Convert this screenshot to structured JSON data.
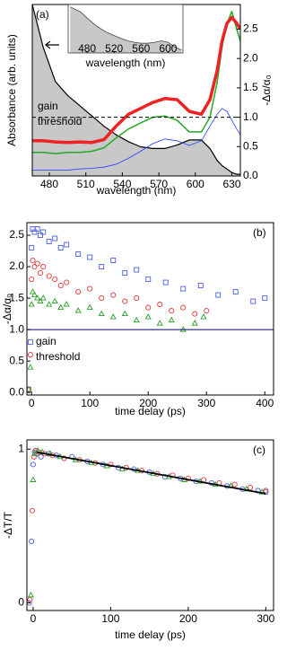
{
  "chart_data": [
    {
      "type": "line",
      "label": "(a)",
      "xlabel": "wavelength (nm)",
      "ylabel": "Absorbance (arb. units)",
      "y2label": "-Δα/α₀",
      "x": [
        466,
        475,
        485,
        495,
        505,
        515,
        525,
        535,
        545,
        555,
        565,
        575,
        585,
        595,
        605,
        612,
        618,
        622,
        626,
        630,
        634,
        637
      ],
      "xlim": [
        466,
        637
      ],
      "xticks": [
        480,
        510,
        540,
        570,
        600,
        630
      ],
      "ylim": [
        0,
        1
      ],
      "y2lim": [
        0,
        2.92
      ],
      "y2ticks": [
        {
          "value": 0,
          "label": "0.0"
        },
        {
          "value": 0.5,
          "label": "0.5"
        },
        {
          "value": 1,
          "label": "1.0"
        },
        {
          "value": 1.5,
          "label": "1.5"
        },
        {
          "value": 2,
          "label": "2.0"
        },
        {
          "value": 2.5,
          "label": "2.5"
        }
      ],
      "threshold": {
        "value": 1,
        "axis": "y2",
        "dashed": true,
        "color": "#000000"
      },
      "annotations": [
        "gain",
        "threshold"
      ],
      "series": [
        {
          "axis": "y",
          "color": "#000000",
          "fill": "#c8c8c8",
          "width": 1.2,
          "values": [
            1.0,
            0.75,
            0.55,
            0.47,
            0.41,
            0.35,
            0.29,
            0.24,
            0.2,
            0.17,
            0.16,
            0.16,
            0.18,
            0.21,
            0.21,
            0.16,
            0.09,
            0.06,
            0.04,
            0.02,
            0.01,
            0.01
          ]
        },
        {
          "axis": "y2",
          "color": "#1f3fff",
          "width": 0.8,
          "values": [
            0.1,
            0.1,
            0.1,
            0.1,
            0.12,
            0.13,
            0.15,
            0.2,
            0.3,
            0.42,
            0.55,
            0.63,
            0.6,
            0.52,
            0.6,
            0.85,
            1.05,
            1.15,
            1.1,
            0.95,
            0.8,
            0.7
          ]
        },
        {
          "axis": "y2",
          "color": "#22aa22",
          "width": 1.5,
          "values": [
            0.4,
            0.4,
            0.38,
            0.4,
            0.4,
            0.42,
            0.48,
            0.65,
            0.8,
            0.9,
            1.0,
            1.02,
            0.95,
            0.75,
            0.75,
            1.0,
            1.6,
            2.2,
            2.6,
            2.8,
            2.5,
            2.3
          ]
        },
        {
          "axis": "y2",
          "color": "#ee2222",
          "width": 3.5,
          "values": [
            0.6,
            0.6,
            0.58,
            0.57,
            0.58,
            0.57,
            0.62,
            0.85,
            1.05,
            1.15,
            1.25,
            1.32,
            1.3,
            1.1,
            1.05,
            1.3,
            1.8,
            2.3,
            2.6,
            2.7,
            2.6,
            2.5
          ]
        }
      ]
    },
    {
      "type": "line",
      "xlabel": "wavelength (nm)",
      "x": [
        455,
        470,
        480,
        490,
        500,
        510,
        520,
        530,
        540,
        550,
        560,
        570,
        580,
        590,
        600,
        610,
        620
      ],
      "xlim": [
        452,
        622
      ],
      "xticks": [
        480,
        520,
        560,
        600
      ],
      "ylim": [
        0,
        1
      ],
      "series": [
        {
          "axis": "y",
          "color": "#444444",
          "fill": "#c8c8c8",
          "width": 0.8,
          "values": [
            0.95,
            0.85,
            0.72,
            0.6,
            0.5,
            0.42,
            0.36,
            0.3,
            0.25,
            0.22,
            0.2,
            0.2,
            0.22,
            0.25,
            0.22,
            0.12,
            0.06
          ]
        }
      ]
    },
    {
      "type": "scatter",
      "label": "(b)",
      "xlabel": "time delay (ps)",
      "ylabel": "-Δα/α₀",
      "xlim": [
        -8,
        415
      ],
      "xticks": [
        0,
        100,
        200,
        300,
        400
      ],
      "ylim": [
        -0.04,
        2.7
      ],
      "yticks": [
        {
          "value": 0,
          "label": "0.0"
        },
        {
          "value": 0.5,
          "label": "0.5"
        },
        {
          "value": 1,
          "label": "1.0"
        },
        {
          "value": 1.5,
          "label": "1.5"
        },
        {
          "value": 2,
          "label": "2.0"
        },
        {
          "value": 2.5,
          "label": "2.5"
        }
      ],
      "threshold": {
        "value": 1,
        "axis": "y",
        "dashed": false,
        "color": "#000066"
      },
      "annotations": [
        "gain",
        "threshold"
      ],
      "series": [
        {
          "color": "#4a5ee8",
          "marker": "square",
          "x": [
            -5,
            -2,
            0,
            2,
            5,
            10,
            15,
            20,
            30,
            40,
            50,
            60,
            80,
            100,
            120,
            140,
            160,
            180,
            200,
            230,
            260,
            290,
            320,
            350,
            380,
            400
          ],
          "values": [
            0.05,
            0.8,
            2.3,
            2.6,
            2.55,
            2.6,
            2.5,
            2.55,
            2.4,
            2.45,
            2.3,
            2.35,
            2.2,
            2.15,
            2.0,
            2.1,
            1.9,
            1.95,
            1.8,
            1.75,
            1.65,
            1.7,
            1.55,
            1.6,
            1.45,
            1.5
          ]
        },
        {
          "color": "#e23a3a",
          "marker": "circle",
          "x": [
            -5,
            -2,
            0,
            2,
            5,
            10,
            15,
            20,
            30,
            40,
            50,
            60,
            80,
            100,
            120,
            140,
            160,
            180,
            200,
            220,
            240,
            260,
            280,
            300
          ],
          "values": [
            0.05,
            0.6,
            1.8,
            2.1,
            2.0,
            2.05,
            1.9,
            2.0,
            1.85,
            1.8,
            1.7,
            1.75,
            1.6,
            1.65,
            1.5,
            1.55,
            1.45,
            1.5,
            1.35,
            1.4,
            1.3,
            1.35,
            1.25,
            1.3
          ]
        },
        {
          "color": "#2aa02a",
          "marker": "triangle",
          "x": [
            -5,
            -2,
            0,
            2,
            5,
            10,
            15,
            20,
            30,
            40,
            50,
            60,
            80,
            100,
            120,
            140,
            160,
            180,
            200,
            220,
            240,
            260,
            280,
            295
          ],
          "values": [
            0.05,
            0.4,
            1.4,
            1.6,
            1.55,
            1.5,
            1.45,
            1.5,
            1.4,
            1.45,
            1.35,
            1.4,
            1.3,
            1.35,
            1.25,
            1.2,
            1.25,
            1.15,
            1.2,
            1.1,
            1.15,
            1.0,
            1.1,
            1.2
          ]
        }
      ]
    },
    {
      "type": "scatter",
      "label": "(c)",
      "xlabel": "time delay (ps)",
      "ylabel": "-ΔT/T",
      "xlim": [
        -8,
        310
      ],
      "xticks": [
        0,
        100,
        200,
        300
      ],
      "ylim": [
        -0.05,
        1.06
      ],
      "yticks": [
        0,
        1
      ],
      "series": [
        {
          "color": "#4a5ee8",
          "marker": "circle",
          "x": [
            -5,
            -2,
            0,
            2,
            5,
            10,
            20,
            30,
            50,
            70,
            90,
            110,
            130,
            150,
            170,
            190,
            210,
            230,
            250,
            270,
            290,
            300
          ],
          "values": [
            0.0,
            0.4,
            0.9,
            0.98,
            0.97,
            0.95,
            0.97,
            0.96,
            0.95,
            0.92,
            0.9,
            0.88,
            0.87,
            0.85,
            0.82,
            0.81,
            0.79,
            0.78,
            0.76,
            0.74,
            0.73,
            0.72
          ]
        },
        {
          "color": "#e23a3a",
          "marker": "circle",
          "x": [
            -4,
            -1,
            1,
            3,
            8,
            15,
            25,
            40,
            60,
            80,
            100,
            120,
            140,
            160,
            180,
            200,
            220,
            240,
            260,
            280,
            300
          ],
          "values": [
            0.02,
            0.6,
            0.95,
            0.99,
            0.98,
            0.97,
            0.96,
            0.94,
            0.93,
            0.91,
            0.9,
            0.88,
            0.86,
            0.84,
            0.83,
            0.81,
            0.8,
            0.78,
            0.77,
            0.75,
            0.73
          ]
        },
        {
          "color": "#2aa02a",
          "marker": "triangle",
          "x": [
            -3,
            0,
            2,
            6,
            12,
            22,
            35,
            55,
            75,
            95,
            115,
            135,
            155,
            175,
            195,
            215,
            235,
            255,
            275,
            295
          ],
          "values": [
            0.05,
            0.8,
            0.97,
            0.99,
            0.98,
            0.97,
            0.95,
            0.93,
            0.91,
            0.89,
            0.87,
            0.86,
            0.84,
            0.82,
            0.8,
            0.79,
            0.77,
            0.76,
            0.74,
            0.72
          ]
        },
        {
          "color": "#000000",
          "marker": "line",
          "x": [
            5,
            300
          ],
          "values": [
            0.98,
            0.71
          ]
        }
      ]
    }
  ]
}
